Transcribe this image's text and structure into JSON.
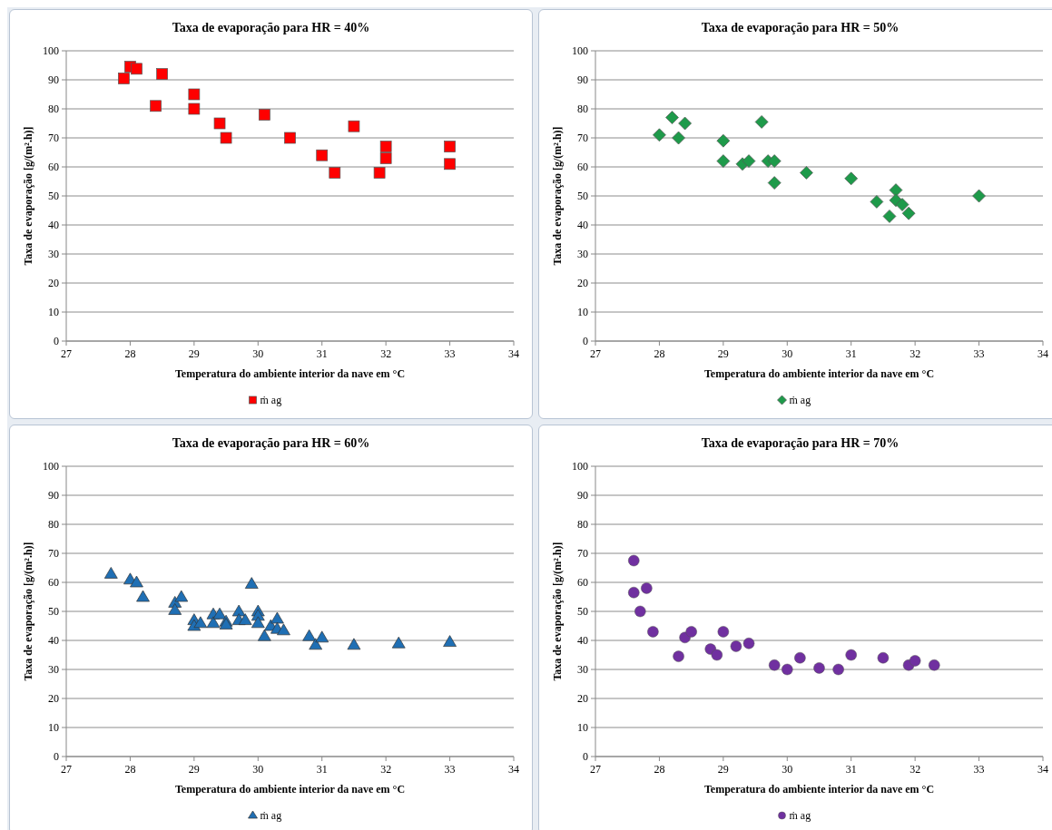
{
  "chart_data": [
    {
      "type": "scatter",
      "title": "Taxa de evaporação para HR = 40%",
      "xlabel": "Temperatura do ambiente interior da nave em °C",
      "ylabel": "Taxa de evaporação [g/(m².h)]",
      "xlim": [
        27,
        34
      ],
      "xticks": [
        27,
        28,
        29,
        30,
        31,
        32,
        33,
        34
      ],
      "ylim": [
        0,
        100
      ],
      "yticks": [
        0,
        10,
        20,
        30,
        40,
        50,
        60,
        70,
        80,
        90,
        100
      ],
      "grid": "y",
      "legend": "bottom",
      "marker": "square",
      "series": [
        {
          "name": "ṁ ag",
          "color": "#ff0000",
          "x": [
            27.9,
            28.0,
            28.1,
            28.4,
            28.5,
            29.0,
            29.0,
            29.4,
            29.5,
            30.1,
            30.5,
            31.0,
            31.2,
            31.5,
            31.9,
            32.0,
            32.0,
            33.0,
            33.0
          ],
          "values": [
            90.5,
            94.5,
            93.8,
            81,
            92,
            85,
            80,
            75,
            70,
            78,
            70,
            64,
            58,
            74,
            58,
            67,
            63,
            67,
            61
          ]
        }
      ]
    },
    {
      "type": "scatter",
      "title": "Taxa de evaporação para HR = 50%",
      "xlabel": "Temperatura do ambiente interior da nave em °C",
      "ylabel": "Taxa de evaporação [g/(m².h)]",
      "xlim": [
        27,
        34
      ],
      "xticks": [
        27,
        28,
        29,
        30,
        31,
        32,
        33,
        34
      ],
      "ylim": [
        0,
        100
      ],
      "yticks": [
        0,
        10,
        20,
        30,
        40,
        50,
        60,
        70,
        80,
        90,
        100
      ],
      "grid": "y",
      "legend": "bottom",
      "marker": "diamond",
      "series": [
        {
          "name": "ṁ ag",
          "color": "#1e9a4a",
          "x": [
            28.0,
            28.2,
            28.3,
            28.4,
            29.0,
            29.0,
            29.3,
            29.4,
            29.6,
            29.7,
            29.8,
            29.8,
            30.3,
            31.0,
            31.4,
            31.6,
            31.7,
            31.7,
            31.8,
            31.9,
            33.0
          ],
          "values": [
            71,
            77,
            70,
            75,
            69,
            62,
            61,
            62,
            75.5,
            62,
            62,
            54.5,
            58,
            56,
            48,
            43,
            52,
            48.5,
            47,
            44,
            50
          ]
        }
      ]
    },
    {
      "type": "scatter",
      "title": "Taxa de evaporação para HR = 60%",
      "xlabel": "Temperatura do ambiente interior da nave em °C",
      "ylabel": "Taxa de evaporação [g/(m².h)]",
      "xlim": [
        27,
        34
      ],
      "xticks": [
        27,
        28,
        29,
        30,
        31,
        32,
        33,
        34
      ],
      "ylim": [
        0,
        100
      ],
      "yticks": [
        0,
        10,
        20,
        30,
        40,
        50,
        60,
        70,
        80,
        90,
        100
      ],
      "grid": "y",
      "legend": "bottom",
      "marker": "triangle",
      "series": [
        {
          "name": "ṁ ag",
          "color": "#1f6fb4",
          "x": [
            27.7,
            28.0,
            28.1,
            28.2,
            28.7,
            28.7,
            28.8,
            29.0,
            29.0,
            29.1,
            29.3,
            29.3,
            29.4,
            29.5,
            29.5,
            29.7,
            29.7,
            29.8,
            29.9,
            30.0,
            30.0,
            30.0,
            30.1,
            30.2,
            30.3,
            30.3,
            30.4,
            30.8,
            30.9,
            31.0,
            31.5,
            32.2,
            33.0
          ],
          "values": [
            63,
            61,
            60,
            55,
            53,
            50.5,
            55,
            47,
            45,
            46,
            49,
            46,
            49,
            46.5,
            45.5,
            50,
            47,
            47,
            59.5,
            50,
            48.5,
            46,
            41.5,
            45,
            47.5,
            44,
            43.5,
            41.5,
            38.5,
            41,
            38.5,
            39,
            39.5
          ]
        }
      ]
    },
    {
      "type": "scatter",
      "title": "Taxa de evaporação para HR = 70%",
      "xlabel": "Temperatura do ambiente interior da nave em °C",
      "ylabel": "Taxa de evaporação [g/(m².h)]",
      "xlim": [
        27,
        34
      ],
      "xticks": [
        27,
        28,
        29,
        30,
        31,
        32,
        33,
        34
      ],
      "ylim": [
        0,
        100
      ],
      "yticks": [
        0,
        10,
        20,
        30,
        40,
        50,
        60,
        70,
        80,
        90,
        100
      ],
      "grid": "y",
      "legend": "bottom",
      "marker": "circle",
      "series": [
        {
          "name": "ṁ ag",
          "color": "#7030a0",
          "x": [
            27.6,
            27.6,
            27.7,
            27.8,
            27.9,
            28.3,
            28.4,
            28.5,
            28.8,
            28.9,
            29.0,
            29.2,
            29.4,
            29.8,
            30.0,
            30.2,
            30.5,
            30.8,
            31.0,
            31.5,
            31.9,
            32.0,
            32.3
          ],
          "values": [
            67.5,
            56.5,
            50,
            58,
            43,
            34.5,
            41,
            43,
            37,
            35,
            43,
            38,
            39,
            31.5,
            30,
            34,
            30.5,
            30,
            35,
            34,
            31.5,
            33,
            31.5
          ]
        }
      ]
    }
  ]
}
